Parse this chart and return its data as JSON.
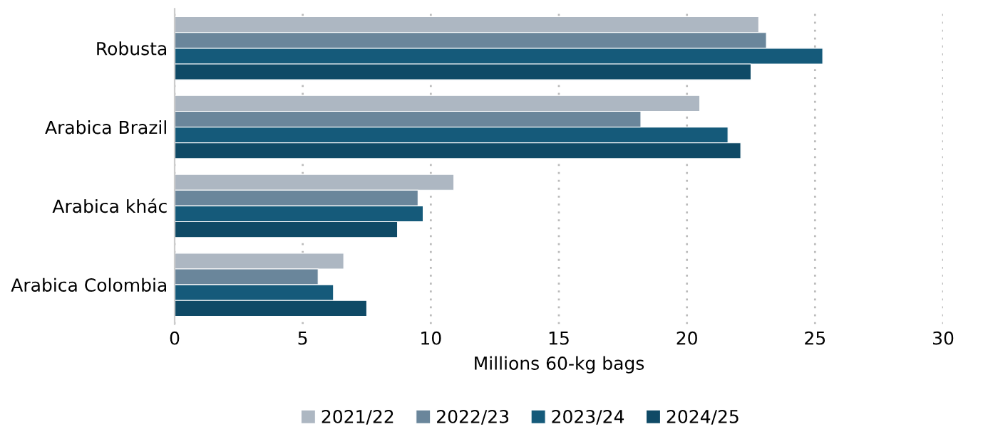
{
  "chart_data": {
    "type": "bar",
    "orientation": "horizontal",
    "xlabel": "Millions 60-kg bags",
    "categories": [
      "Robusta",
      "Arabica Brazil",
      "Arabica khác",
      "Arabica Colombia"
    ],
    "series": [
      {
        "name": "2021/22",
        "color": "#adb7c2",
        "values": [
          22.8,
          20.5,
          10.9,
          6.6
        ]
      },
      {
        "name": "2022/23",
        "color": "#6a869b",
        "values": [
          23.1,
          18.2,
          9.5,
          5.6
        ]
      },
      {
        "name": "2023/24",
        "color": "#155a7a",
        "values": [
          25.3,
          21.6,
          9.7,
          6.2
        ]
      },
      {
        "name": "2024/25",
        "color": "#0f4a66",
        "values": [
          22.5,
          22.1,
          8.7,
          7.5
        ]
      }
    ],
    "xlim": [
      0,
      30
    ],
    "xticks": [
      0,
      5,
      10,
      15,
      20,
      25,
      30
    ],
    "grid": "x",
    "legend": "bottom"
  }
}
